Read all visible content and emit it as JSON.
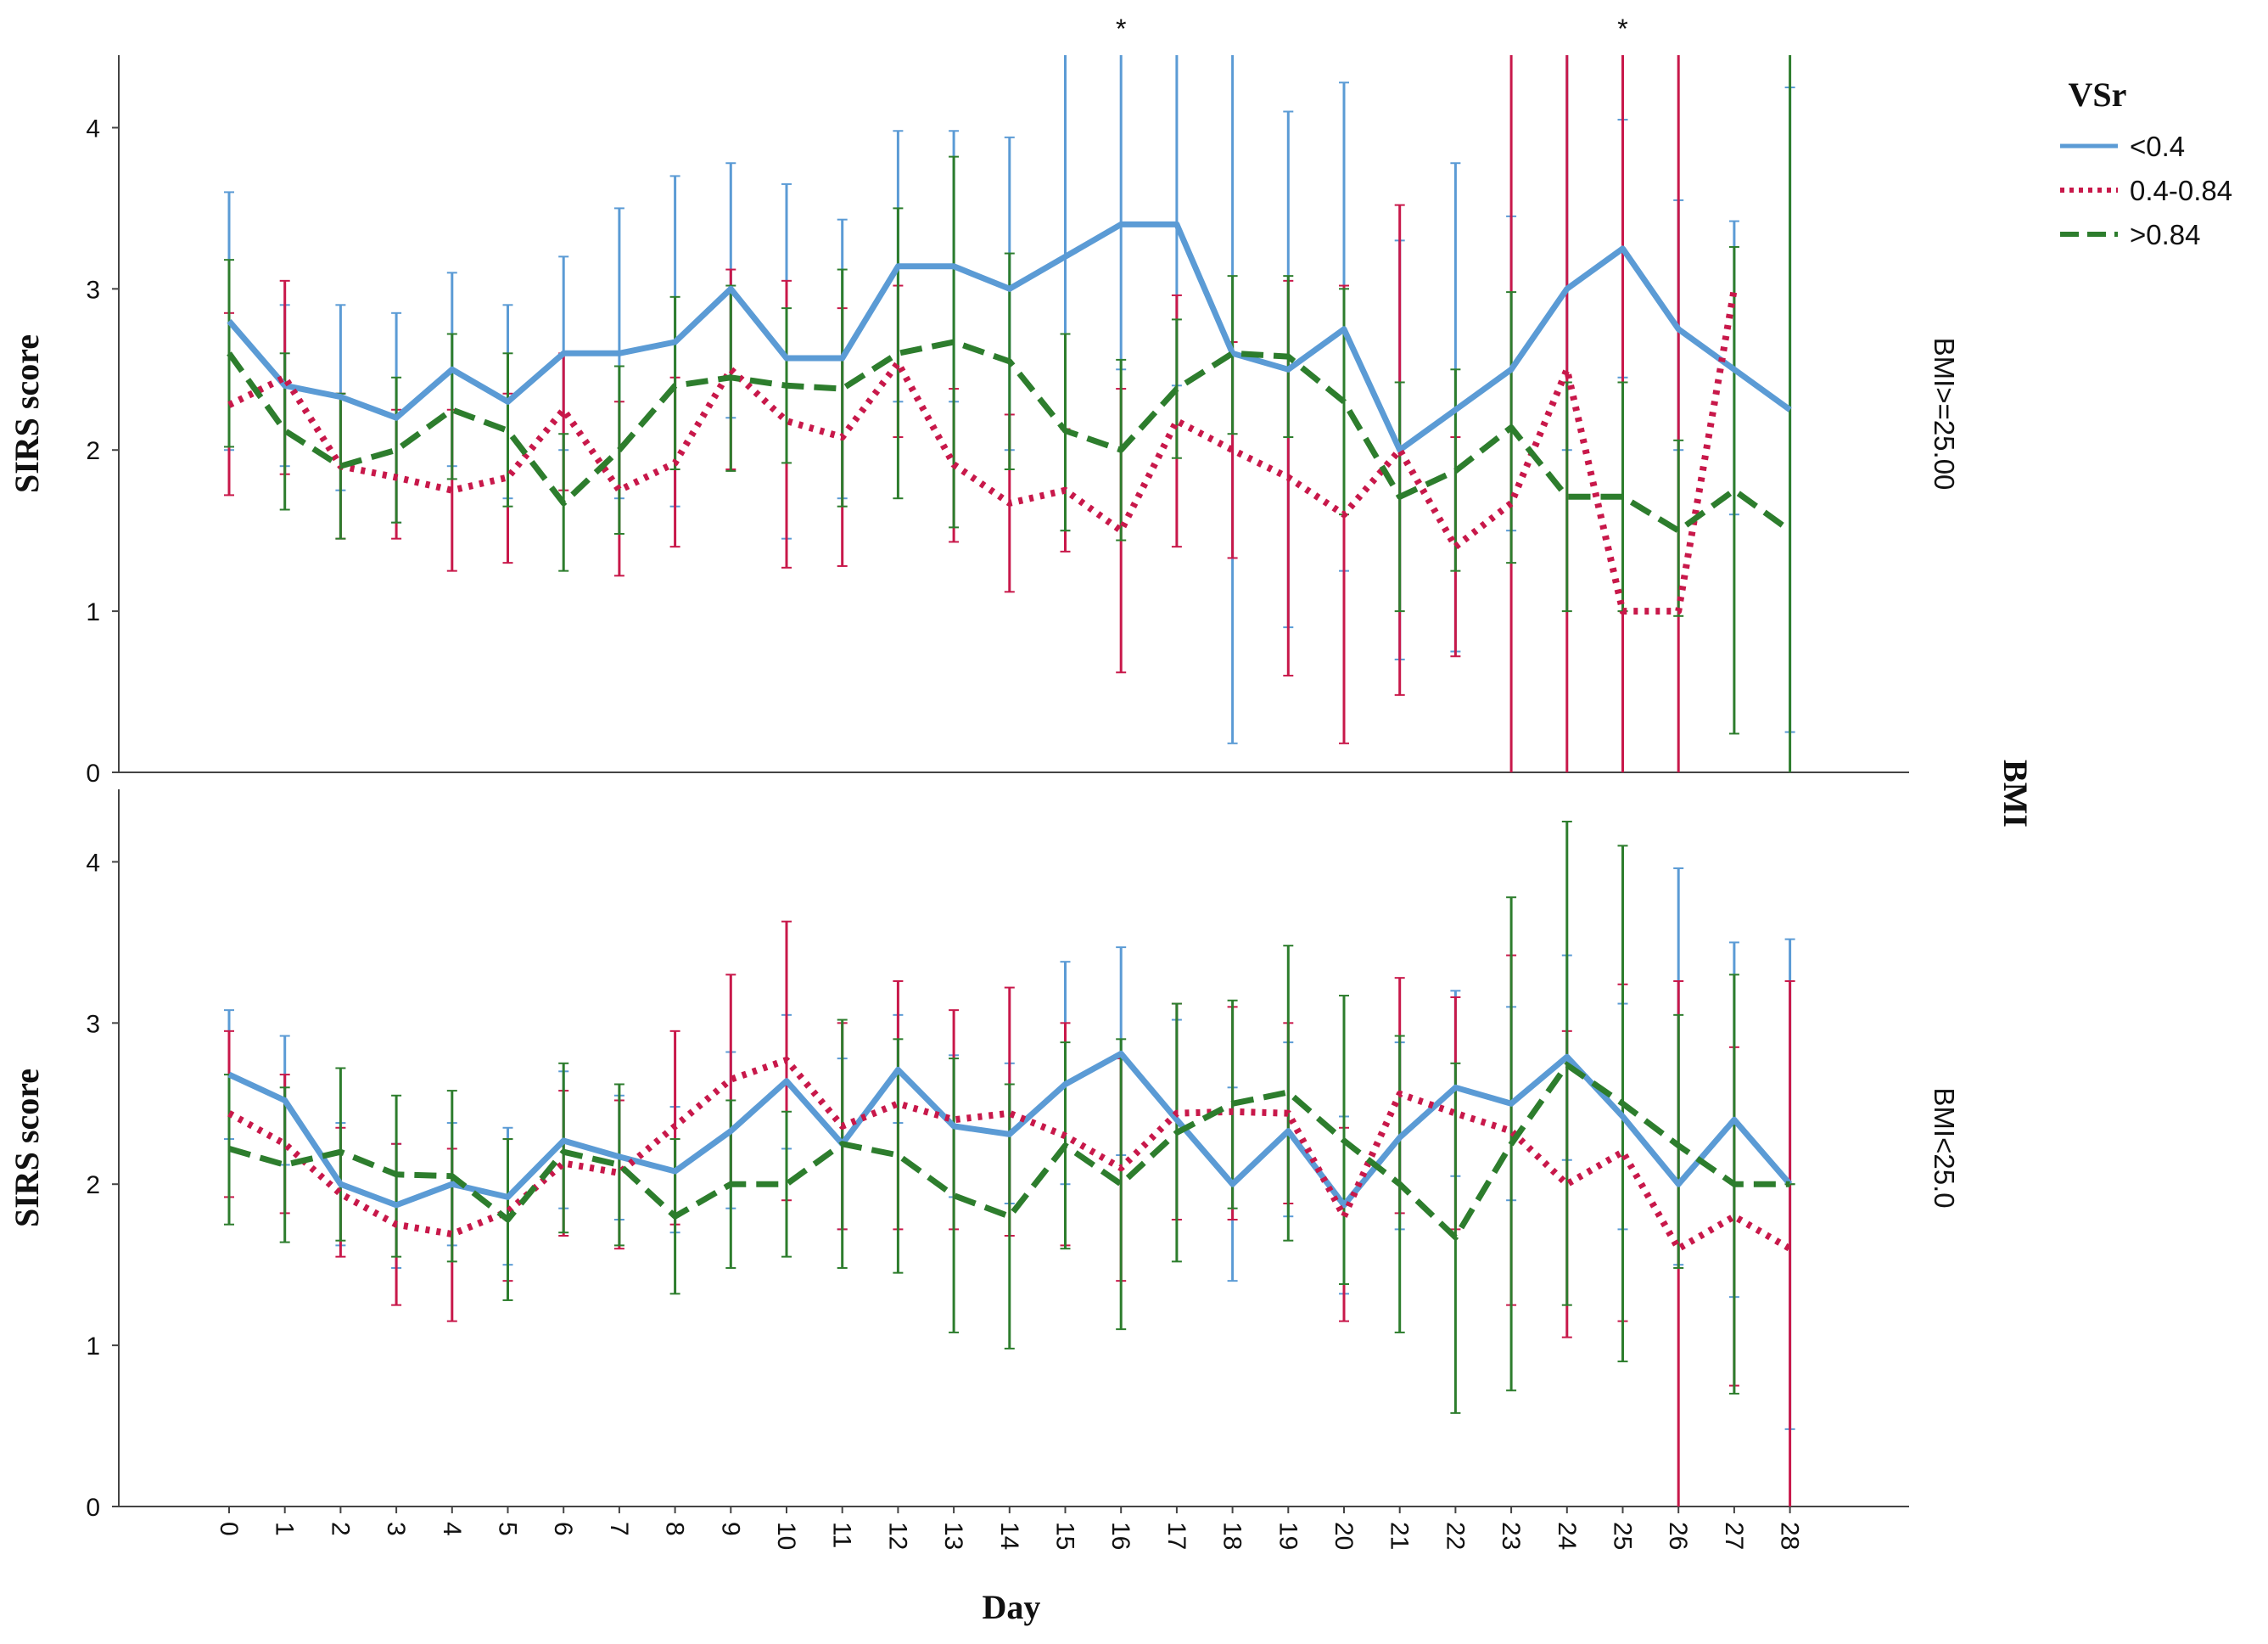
{
  "chart_data": {
    "type": "line",
    "title": "",
    "xlabel": "Day",
    "ylabel": "SIRS score",
    "facet_label": "BMI",
    "legend_title": "VSr",
    "ylim": [
      0,
      4.45
    ],
    "x": [
      0,
      1,
      2,
      3,
      4,
      5,
      6,
      7,
      8,
      9,
      10,
      11,
      12,
      13,
      14,
      15,
      16,
      17,
      18,
      19,
      20,
      21,
      22,
      23,
      24,
      25,
      26,
      27,
      28
    ],
    "y_ticks": [
      0,
      1,
      2,
      3,
      4
    ],
    "series_styles": [
      {
        "name": "<0.4",
        "color": "#5b9bd5",
        "dash": "solid"
      },
      {
        "name": "0.4-0.84",
        "color": "#c8184a",
        "dash": "dotted"
      },
      {
        "name": ">0.84",
        "color": "#2d7d2d",
        "dash": "dashed"
      }
    ],
    "panels": [
      {
        "label": "BMI>=25.00",
        "annotations": [
          {
            "day": 16,
            "text": "*"
          },
          {
            "day": 25,
            "text": "*"
          }
        ],
        "series": [
          {
            "name": "<0.4",
            "values": [
              2.8,
              2.4,
              2.33,
              2.2,
              2.5,
              2.3,
              2.6,
              2.6,
              2.67,
              3.0,
              2.57,
              2.57,
              3.14,
              3.14,
              3.0,
              3.2,
              3.4,
              3.4,
              2.6,
              2.5,
              2.75,
              2.0,
              2.25,
              2.5,
              3.0,
              3.25,
              2.75,
              2.5,
              2.25
            ],
            "lower": [
              2.0,
              1.9,
              1.75,
              1.55,
              1.9,
              1.7,
              2.0,
              1.7,
              1.65,
              2.2,
              1.45,
              1.7,
              2.3,
              2.3,
              2.0,
              1.5,
              2.5,
              2.4,
              0.18,
              0.9,
              1.25,
              0.7,
              0.75,
              1.5,
              2.0,
              2.45,
              2.0,
              1.6,
              0.25
            ],
            "upper": [
              3.6,
              2.9,
              2.9,
              2.85,
              3.1,
              2.9,
              3.2,
              3.5,
              3.7,
              3.78,
              3.65,
              3.43,
              3.98,
              3.98,
              3.94,
              4.45,
              4.45,
              4.45,
              4.45,
              4.1,
              4.28,
              3.3,
              3.78,
              3.45,
              4.45,
              4.05,
              3.55,
              3.42,
              4.25
            ]
          },
          {
            "name": "0.4-0.84",
            "values": [
              2.28,
              2.45,
              1.9,
              1.83,
              1.75,
              1.83,
              2.25,
              1.75,
              1.92,
              2.5,
              2.18,
              2.08,
              2.54,
              1.91,
              1.67,
              1.75,
              1.5,
              2.18,
              2.0,
              1.83,
              1.6,
              2.0,
              1.4,
              1.67,
              2.5,
              1.0,
              1.0,
              3.0,
              null
            ],
            "lower": [
              1.72,
              1.85,
              1.45,
              1.45,
              1.25,
              1.3,
              1.75,
              1.22,
              1.4,
              1.88,
              1.27,
              1.28,
              2.08,
              1.43,
              1.12,
              1.37,
              0.62,
              1.4,
              1.33,
              0.6,
              0.18,
              0.48,
              0.72,
              0.0,
              0.0,
              0.0,
              0.0,
              null,
              null
            ],
            "upper": [
              2.85,
              3.05,
              2.35,
              2.25,
              2.25,
              2.35,
              2.6,
              2.3,
              2.45,
              3.12,
              3.05,
              2.88,
              3.02,
              2.38,
              2.22,
              2.13,
              2.38,
              2.96,
              2.67,
              3.05,
              3.02,
              3.52,
              2.08,
              4.45,
              4.45,
              4.45,
              4.45,
              null,
              null
            ]
          },
          {
            "name": ">0.84",
            "values": [
              2.6,
              2.12,
              1.9,
              2.0,
              2.25,
              2.12,
              1.67,
              2.0,
              2.4,
              2.45,
              2.4,
              2.38,
              2.6,
              2.67,
              2.55,
              2.12,
              2.0,
              2.38,
              2.6,
              2.58,
              2.3,
              1.71,
              1.87,
              2.14,
              1.71,
              1.71,
              1.5,
              1.75,
              1.5
            ],
            "lower": [
              2.02,
              1.63,
              1.45,
              1.55,
              1.82,
              1.65,
              1.25,
              1.48,
              1.88,
              1.87,
              1.92,
              1.65,
              1.7,
              1.52,
              1.88,
              1.5,
              1.44,
              1.95,
              2.1,
              2.08,
              1.6,
              1.0,
              1.25,
              1.3,
              1.0,
              1.0,
              0.97,
              0.24,
              0.0
            ],
            "upper": [
              3.18,
              2.6,
              2.35,
              2.45,
              2.72,
              2.6,
              2.1,
              2.52,
              2.95,
              3.02,
              2.88,
              3.12,
              3.5,
              3.82,
              3.22,
              2.72,
              2.56,
              2.81,
              3.08,
              3.08,
              3.0,
              2.42,
              2.5,
              2.98,
              2.42,
              2.42,
              2.06,
              3.26,
              4.45
            ]
          }
        ]
      },
      {
        "label": "BMI<25.0",
        "annotations": [],
        "series": [
          {
            "name": "<0.4",
            "values": [
              2.68,
              2.52,
              2.0,
              1.87,
              2.0,
              1.92,
              2.27,
              2.17,
              2.08,
              2.33,
              2.64,
              2.25,
              2.71,
              2.36,
              2.31,
              2.62,
              2.81,
              2.4,
              2.0,
              2.33,
              1.87,
              2.29,
              2.6,
              2.5,
              2.79,
              2.42,
              2.0,
              2.4,
              2.0
            ],
            "lower": [
              2.28,
              2.12,
              1.62,
              1.48,
              1.62,
              1.5,
              1.85,
              1.78,
              1.7,
              1.85,
              2.22,
              1.72,
              2.38,
              1.92,
              1.88,
              2.0,
              2.18,
              1.78,
              1.4,
              1.8,
              1.32,
              1.72,
              2.05,
              1.9,
              2.15,
              1.72,
              1.5,
              1.3,
              0.48
            ],
            "upper": [
              3.08,
              2.92,
              2.38,
              2.25,
              2.38,
              2.35,
              2.7,
              2.55,
              2.48,
              2.82,
              3.05,
              2.78,
              3.05,
              2.8,
              2.75,
              3.38,
              3.47,
              3.02,
              2.6,
              2.88,
              2.42,
              2.88,
              3.2,
              3.1,
              3.42,
              3.12,
              3.96,
              3.5,
              3.52
            ]
          },
          {
            "name": "0.4-0.84",
            "values": [
              2.44,
              2.25,
              1.94,
              1.75,
              1.69,
              1.83,
              2.13,
              2.07,
              2.36,
              2.65,
              2.77,
              2.36,
              2.5,
              2.4,
              2.44,
              2.3,
              2.1,
              2.44,
              2.45,
              2.44,
              1.8,
              2.56,
              2.44,
              2.33,
              2.0,
              2.2,
              1.6,
              1.8,
              1.6
            ],
            "lower": [
              1.92,
              1.82,
              1.55,
              1.25,
              1.15,
              1.4,
              1.68,
              1.6,
              1.75,
              2.0,
              1.9,
              1.72,
              1.72,
              1.72,
              1.68,
              1.62,
              1.4,
              1.78,
              1.78,
              1.88,
              1.15,
              1.82,
              1.72,
              1.25,
              1.05,
              1.15,
              0.0,
              0.75,
              0.0
            ],
            "upper": [
              2.95,
              2.68,
              2.35,
              2.25,
              2.22,
              2.28,
              2.58,
              2.52,
              2.95,
              3.3,
              3.63,
              3.0,
              3.26,
              3.08,
              3.22,
              3.0,
              2.78,
              3.12,
              3.1,
              3.0,
              2.35,
              3.28,
              3.16,
              3.42,
              2.95,
              3.24,
              3.26,
              2.85,
              3.26
            ]
          },
          {
            "name": ">0.84",
            "values": [
              2.22,
              2.12,
              2.2,
              2.06,
              2.05,
              1.78,
              2.2,
              2.12,
              1.8,
              2.0,
              2.0,
              2.25,
              2.18,
              1.93,
              1.8,
              2.24,
              2.0,
              2.32,
              2.5,
              2.57,
              2.27,
              2.0,
              1.67,
              2.25,
              2.74,
              2.5,
              2.24,
              2.0,
              2.0
            ],
            "lower": [
              1.75,
              1.64,
              1.65,
              1.55,
              1.52,
              1.28,
              1.7,
              1.62,
              1.32,
              1.48,
              1.55,
              1.48,
              1.45,
              1.08,
              0.98,
              1.6,
              1.1,
              1.52,
              1.85,
              1.65,
              1.38,
              1.08,
              0.58,
              0.72,
              1.25,
              0.9,
              1.48,
              0.7,
              2.0
            ],
            "upper": [
              2.68,
              2.6,
              2.72,
              2.55,
              2.58,
              2.28,
              2.75,
              2.62,
              2.28,
              2.52,
              2.45,
              3.02,
              2.9,
              2.78,
              2.62,
              2.88,
              2.9,
              3.12,
              3.14,
              3.48,
              3.17,
              2.92,
              2.75,
              3.78,
              4.25,
              4.1,
              3.05,
              3.3,
              2.0
            ]
          }
        ]
      }
    ]
  }
}
